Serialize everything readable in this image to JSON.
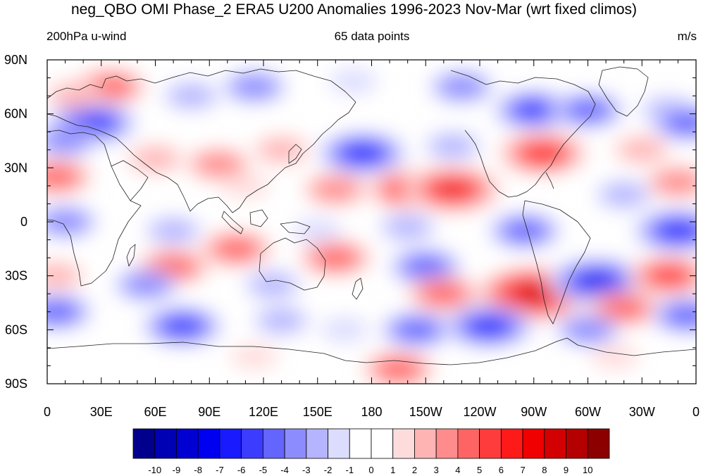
{
  "title": "neg_QBO OMI Phase_2 ERA5 U200 Anomalies 1996-2023 Nov-Mar (wrt fixed climos)",
  "subtitle_left": "200hPa u-wind",
  "subtitle_center": "65 data points",
  "subtitle_right": "m/s",
  "map": {
    "projection": "cylindrical-equidistant",
    "lon_range": [
      0,
      360
    ],
    "lat_range": [
      -90,
      90
    ],
    "lat_ticks": [
      {
        "lat": 90,
        "label": "90N"
      },
      {
        "lat": 60,
        "label": "60N"
      },
      {
        "lat": 30,
        "label": "30N"
      },
      {
        "lat": 0,
        "label": "0"
      },
      {
        "lat": -30,
        "label": "30S"
      },
      {
        "lat": -60,
        "label": "60S"
      },
      {
        "lat": -90,
        "label": "90S"
      }
    ],
    "lon_ticks": [
      {
        "lon": 0,
        "label": "0"
      },
      {
        "lon": 30,
        "label": "30E"
      },
      {
        "lon": 60,
        "label": "60E"
      },
      {
        "lon": 90,
        "label": "90E"
      },
      {
        "lon": 120,
        "label": "120E"
      },
      {
        "lon": 150,
        "label": "150E"
      },
      {
        "lon": 180,
        "label": "180"
      },
      {
        "lon": 210,
        "label": "150W"
      },
      {
        "lon": 240,
        "label": "120W"
      },
      {
        "lon": 270,
        "label": "90W"
      },
      {
        "lon": 300,
        "label": "60W"
      },
      {
        "lon": 330,
        "label": "30W"
      },
      {
        "lon": 360,
        "label": "0"
      }
    ]
  },
  "colorbar": {
    "labels": [
      "-10",
      "-9",
      "-8",
      "-7",
      "-6",
      "-5",
      "-4",
      "-3",
      "-2",
      "-1",
      "0",
      "1",
      "2",
      "3",
      "4",
      "5",
      "6",
      "7",
      "8",
      "9",
      "10"
    ],
    "colors": [
      "#00008c",
      "#0000b4",
      "#0000d2",
      "#0000f0",
      "#1a1aff",
      "#3c3cff",
      "#6464ff",
      "#8c8cff",
      "#b4b4ff",
      "#dcdcff",
      "#ffffff",
      "#ffffff",
      "#ffdcdc",
      "#ffb4b4",
      "#ff8c8c",
      "#ff6464",
      "#ff3c3c",
      "#ff1a1a",
      "#f00000",
      "#d20000",
      "#b40000",
      "#8c0000"
    ]
  },
  "anomalies": [
    {
      "lon": 25,
      "lat": 55,
      "value": -7
    },
    {
      "lon": 10,
      "lat": 45,
      "value": -4
    },
    {
      "lon": 35,
      "lat": 75,
      "value": 5
    },
    {
      "lon": 15,
      "lat": 70,
      "value": 3
    },
    {
      "lon": 80,
      "lat": 70,
      "value": -3
    },
    {
      "lon": 115,
      "lat": 75,
      "value": -4
    },
    {
      "lon": 170,
      "lat": 78,
      "value": -2
    },
    {
      "lon": 230,
      "lat": 75,
      "value": -4
    },
    {
      "lon": 270,
      "lat": 62,
      "value": -6
    },
    {
      "lon": 300,
      "lat": 62,
      "value": -5
    },
    {
      "lon": 345,
      "lat": 62,
      "value": -3
    },
    {
      "lon": 355,
      "lat": 55,
      "value": -5
    },
    {
      "lon": 95,
      "lat": 32,
      "value": 4
    },
    {
      "lon": 130,
      "lat": 40,
      "value": 3
    },
    {
      "lon": 60,
      "lat": 35,
      "value": 3
    },
    {
      "lon": 5,
      "lat": 25,
      "value": 5
    },
    {
      "lon": 175,
      "lat": 38,
      "value": -7
    },
    {
      "lon": 225,
      "lat": 42,
      "value": -3
    },
    {
      "lon": 275,
      "lat": 38,
      "value": 7
    },
    {
      "lon": 330,
      "lat": 40,
      "value": 3
    },
    {
      "lon": 350,
      "lat": 22,
      "value": 4
    },
    {
      "lon": 200,
      "lat": 18,
      "value": 6
    },
    {
      "lon": 225,
      "lat": 18,
      "value": 8
    },
    {
      "lon": 160,
      "lat": 18,
      "value": 4
    },
    {
      "lon": 110,
      "lat": 20,
      "value": 2
    },
    {
      "lon": 320,
      "lat": 15,
      "value": -3
    },
    {
      "lon": 10,
      "lat": 0,
      "value": -4
    },
    {
      "lon": 70,
      "lat": -5,
      "value": -3
    },
    {
      "lon": 150,
      "lat": -5,
      "value": -2
    },
    {
      "lon": 200,
      "lat": -3,
      "value": -3
    },
    {
      "lon": 265,
      "lat": -5,
      "value": -5
    },
    {
      "lon": 350,
      "lat": -5,
      "value": -7
    },
    {
      "lon": 105,
      "lat": -15,
      "value": 5
    },
    {
      "lon": 160,
      "lat": -20,
      "value": 5
    },
    {
      "lon": 70,
      "lat": -25,
      "value": 5
    },
    {
      "lon": 5,
      "lat": -30,
      "value": 3
    },
    {
      "lon": 210,
      "lat": -25,
      "value": -5
    },
    {
      "lon": 55,
      "lat": -35,
      "value": -4
    },
    {
      "lon": 125,
      "lat": -35,
      "value": -3
    },
    {
      "lon": 270,
      "lat": -40,
      "value": 9
    },
    {
      "lon": 220,
      "lat": -40,
      "value": 5
    },
    {
      "lon": 305,
      "lat": -33,
      "value": -8
    },
    {
      "lon": 345,
      "lat": -30,
      "value": 6
    },
    {
      "lon": 320,
      "lat": -48,
      "value": 5
    },
    {
      "lon": 5,
      "lat": -50,
      "value": -5
    },
    {
      "lon": 355,
      "lat": -52,
      "value": -5
    },
    {
      "lon": 75,
      "lat": -58,
      "value": -6
    },
    {
      "lon": 245,
      "lat": -58,
      "value": -7
    },
    {
      "lon": 205,
      "lat": -60,
      "value": -5
    },
    {
      "lon": 300,
      "lat": -60,
      "value": -4
    },
    {
      "lon": 130,
      "lat": -55,
      "value": -3
    },
    {
      "lon": 165,
      "lat": -60,
      "value": -2
    },
    {
      "lon": 195,
      "lat": -82,
      "value": 5
    },
    {
      "lon": 115,
      "lat": -75,
      "value": 2
    },
    {
      "lon": 315,
      "lat": -75,
      "value": 2
    }
  ]
}
